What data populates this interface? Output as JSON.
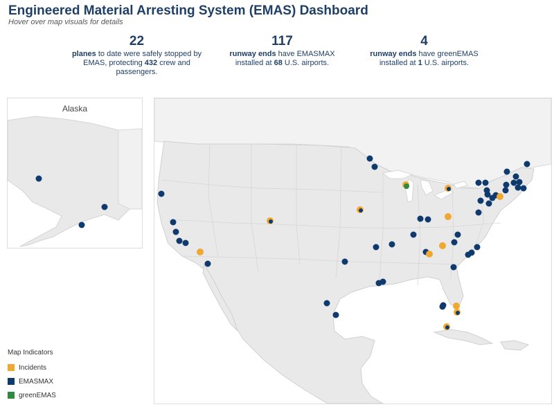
{
  "header": {
    "title": "Engineered Material Arresting System (EMAS) Dashboard",
    "subtitle": "Hover over map visuals for details"
  },
  "stats": [
    {
      "number": "22",
      "bold1": "planes",
      "text1": " to date were safely stopped by EMAS, protecting ",
      "bold2": "432",
      "text2": " crew and passengers."
    },
    {
      "number": "117",
      "bold1": "runway ends",
      "text1": " have EMASMAX installed at ",
      "bold2": "68",
      "text2": " U.S. airports."
    },
    {
      "number": "4",
      "bold1": "runway ends",
      "text1": " have greenEMAS installed at ",
      "bold2": "1",
      "text2": " U.S. airports."
    }
  ],
  "alaska": {
    "label": "Alaska"
  },
  "legend": {
    "title": "Map Indicators",
    "items": [
      {
        "label": "Incidents",
        "color": "#f0a830"
      },
      {
        "label": "EMASMAX",
        "color": "#0f3a6e"
      },
      {
        "label": "greenEMAS",
        "color": "#2e8b3e"
      }
    ]
  },
  "colors": {
    "title": "#1f3f66",
    "land": "#e9e9e9",
    "water": "#ffffff",
    "border": "#cfcfcf"
  }
}
